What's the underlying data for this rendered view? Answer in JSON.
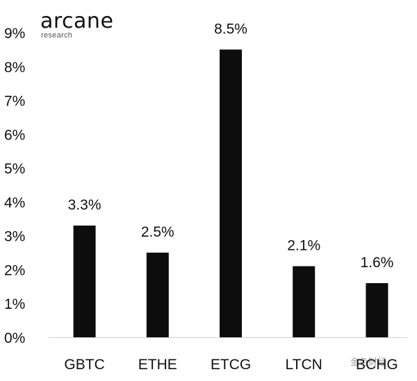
{
  "brand": {
    "name": "arcane",
    "subtitle": "research"
  },
  "watermark": "金色财经",
  "chart_data": {
    "type": "bar",
    "title": "",
    "xlabel": "",
    "ylabel": "",
    "categories": [
      "GBTC",
      "ETHE",
      "ETCG",
      "LTCN",
      "BCHG"
    ],
    "values": [
      3.3,
      2.5,
      8.5,
      2.1,
      1.6
    ],
    "value_labels": [
      "3.3%",
      "2.5%",
      "8.5%",
      "2.1%",
      "1.6%"
    ],
    "ylim": [
      0,
      9
    ],
    "yticks": [
      0,
      1,
      2,
      3,
      4,
      5,
      6,
      7,
      8,
      9
    ],
    "ytick_labels": [
      "0%",
      "1%",
      "2%",
      "3%",
      "4%",
      "5%",
      "6%",
      "7%",
      "8%",
      "9%"
    ],
    "grid": false,
    "legend": "none",
    "colors": {
      "bar": "#0d0d0d",
      "text": "#111111",
      "baseline": "#d0d0d0"
    }
  }
}
